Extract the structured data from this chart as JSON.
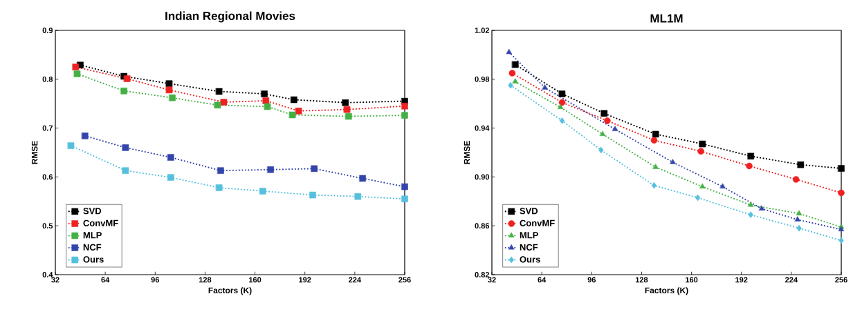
{
  "chart_data": [
    {
      "type": "line",
      "title": "Indian Regional Movies",
      "xlabel": "Factors (K)",
      "ylabel": "RMSE",
      "xlim": [
        32,
        256
      ],
      "ylim": [
        0.4,
        0.9
      ],
      "xticks": [
        32,
        64,
        96,
        128,
        160,
        192,
        224,
        256
      ],
      "yticks": [
        0.4,
        0.5,
        0.6,
        0.7,
        0.8,
        0.9
      ],
      "marker": "square",
      "line_style": "dotted",
      "legend": "bottom left",
      "series": [
        {
          "name": "SVD",
          "color": "#000000",
          "x": [
            48,
            76,
            105,
            137,
            166,
            185,
            218,
            256
          ],
          "values": [
            0.829,
            0.806,
            0.791,
            0.775,
            0.77,
            0.758,
            0.752,
            0.755
          ]
        },
        {
          "name": "ConvMF",
          "color": "#ee2222",
          "x": [
            45,
            78,
            105,
            140,
            167,
            188,
            219,
            256
          ],
          "values": [
            0.825,
            0.801,
            0.778,
            0.753,
            0.756,
            0.735,
            0.738,
            0.745
          ]
        },
        {
          "name": "MLP",
          "color": "#44b044",
          "x": [
            46,
            76,
            107,
            136,
            168,
            184,
            220,
            256
          ],
          "values": [
            0.811,
            0.776,
            0.762,
            0.747,
            0.744,
            0.727,
            0.724,
            0.726
          ]
        },
        {
          "name": "NCF",
          "color": "#3344aa",
          "x": [
            51,
            77,
            106,
            138,
            170,
            198,
            229,
            256
          ],
          "values": [
            0.684,
            0.66,
            0.64,
            0.613,
            0.615,
            0.617,
            0.597,
            0.58
          ]
        },
        {
          "name": "Ours",
          "color": "#55c0dd",
          "x": [
            42,
            77,
            106,
            137,
            165,
            197,
            226,
            256
          ],
          "values": [
            0.664,
            0.613,
            0.599,
            0.578,
            0.571,
            0.563,
            0.56,
            0.555
          ]
        }
      ]
    },
    {
      "type": "line",
      "title": "ML1M",
      "xlabel": "Factors (K)",
      "ylabel": "RMSE",
      "xlim": [
        32,
        256
      ],
      "ylim": [
        0.82,
        1.02
      ],
      "xticks": [
        32,
        64,
        96,
        128,
        160,
        192,
        224,
        256
      ],
      "yticks": [
        0.82,
        0.86,
        {
          "value": 0.9,
          "label": "0.90"
        },
        0.94,
        0.98,
        1.02
      ],
      "line_style": "dotted",
      "legend": "bottom left",
      "series": [
        {
          "name": "SVD",
          "color": "#000000",
          "marker": "square",
          "x": [
            47,
            77,
            104,
            137,
            167,
            198,
            230,
            256
          ],
          "values": [
            0.992,
            0.968,
            0.952,
            0.935,
            0.927,
            0.917,
            0.91,
            0.907
          ]
        },
        {
          "name": "ConvMF",
          "color": "#ee2222",
          "marker": "circle",
          "x": [
            45,
            77,
            106,
            136,
            166,
            197,
            227,
            256
          ],
          "values": [
            0.985,
            0.961,
            0.946,
            0.93,
            0.921,
            0.909,
            0.898,
            0.887
          ]
        },
        {
          "name": "MLP",
          "color": "#44b044",
          "marker": "triangle",
          "x": [
            47,
            76,
            103,
            137,
            167,
            198,
            229,
            256
          ],
          "values": [
            0.978,
            0.957,
            0.935,
            0.908,
            0.892,
            0.877,
            0.87,
            0.859
          ]
        },
        {
          "name": "NCF",
          "color": "#3344aa",
          "marker": "triangle",
          "x": [
            43,
            66,
            111,
            148,
            180,
            205,
            228,
            256
          ],
          "values": [
            1.002,
            0.973,
            0.939,
            0.912,
            0.892,
            0.874,
            0.865,
            0.857
          ]
        },
        {
          "name": "Ours",
          "color": "#55c0dd",
          "marker": "diamond",
          "x": [
            44,
            77,
            102,
            136,
            164,
            198,
            229,
            256
          ],
          "values": [
            0.975,
            0.946,
            0.922,
            0.893,
            0.883,
            0.869,
            0.858,
            0.848
          ]
        }
      ]
    }
  ]
}
